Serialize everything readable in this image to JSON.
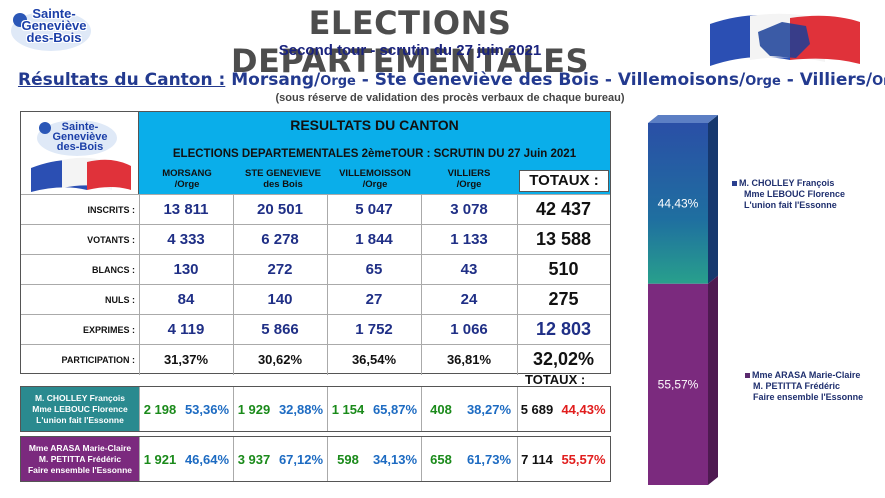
{
  "header": {
    "logo_line1": "Sainte-",
    "logo_line2": "Geneviève",
    "logo_line3": "des-Bois",
    "title": "ELECTIONS DEPARTEMENTALES",
    "subtitle": "Second tour - scrutin du 27 juin 2021",
    "canton_prefix": "Résultats du Canton :",
    "canton_1": "Morsang/",
    "canton_1s": "Orge",
    "canton_dash1": " - Ste Geneviève des Bois - Villemoisons/",
    "canton_2s": "Orge",
    "canton_dash2": " - Villiers/",
    "canton_3s": "Orge",
    "reserve": "(sous réserve de validation des procès verbaux de chaque bureau)"
  },
  "results": {
    "heading": "RESULTATS DU CANTON",
    "subheading": "ELECTIONS DEPARTEMENTALES 2èmeTOUR : SCRUTIN DU 27 Juin 2021",
    "columns": [
      {
        "l1": "MORSANG",
        "l2": "/Orge"
      },
      {
        "l1": "STE GENEVIEVE",
        "l2": "des Bois"
      },
      {
        "l1": "VILLEMOISSON",
        "l2": "/Orge"
      },
      {
        "l1": "VILLIERS",
        "l2": "/Orge"
      }
    ],
    "totaux_label": "TOTAUX :",
    "rows": [
      {
        "label": "INSCRITS :",
        "values": [
          "13 811",
          "20 501",
          "5 047",
          "3 078"
        ],
        "total": "42 437"
      },
      {
        "label": "VOTANTS :",
        "values": [
          "4 333",
          "6 278",
          "1 844",
          "1 133"
        ],
        "total": "13 588"
      },
      {
        "label": "BLANCS :",
        "values": [
          "130",
          "272",
          "65",
          "43"
        ],
        "total": "510"
      },
      {
        "label": "NULS :",
        "values": [
          "84",
          "140",
          "27",
          "24"
        ],
        "total": "275"
      },
      {
        "label": "EXPRIMES :",
        "values": [
          "4 119",
          "5 866",
          "1 752",
          "1 066"
        ],
        "total": "12 803"
      },
      {
        "label": "PARTICIPATION :",
        "values": [
          "31,37%",
          "30,62%",
          "36,54%",
          "36,81%"
        ],
        "total": "32,02%"
      }
    ]
  },
  "candidates": {
    "totaux_label": "TOTAUX :",
    "list": [
      {
        "name1": "M. CHOLLEY François",
        "name2": "Mme LEBOUC Florence",
        "name3": "L'union fait l'Essonne",
        "color": "#2a8a8f",
        "cells": [
          [
            "2 198",
            "53,36%"
          ],
          [
            "1 929",
            "32,88%"
          ],
          [
            "1 154",
            "65,87%"
          ],
          [
            "408",
            "38,27%"
          ]
        ],
        "total_n": "5 689",
        "total_p": "44,43%"
      },
      {
        "name1": "Mme ARASA Marie-Claire",
        "name2": "M. PETITTA Frédéric",
        "name3": "Faire ensemble l'Essonne",
        "color": "#7b2a7e",
        "cells": [
          [
            "1 921",
            "46,64%"
          ],
          [
            "3 937",
            "67,12%"
          ],
          [
            "598",
            "34,13%"
          ],
          [
            "658",
            "61,73%"
          ]
        ],
        "total_n": "7 114",
        "total_p": "55,57%"
      }
    ]
  },
  "bar": {
    "top_pct_label": "44,43%",
    "bottom_pct_label": "55,57%",
    "top_share": 0.4443,
    "top_color": "#1e5aa8",
    "bottom_color": "#7b2a7e",
    "legend_top": [
      "M. CHOLLEY François",
      "Mme LEBOUC Florence",
      "L'union fait l'Essonne"
    ],
    "legend_bottom": [
      "Mme ARASA Marie-Claire",
      "M. PETITTA Frédéric",
      "Faire ensemble l'Essonne"
    ]
  }
}
